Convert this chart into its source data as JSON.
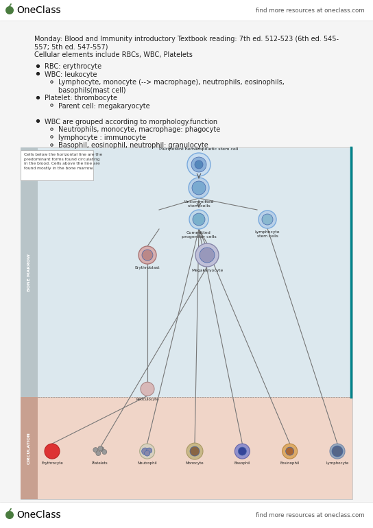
{
  "bg_color": "#f5f5f5",
  "header_bg": "#ffffff",
  "footer_bg": "#ffffff",
  "oneclass_green": "#4a7c3f",
  "header_text_right": "find more resources at oneclass.com",
  "footer_text_right": "find more resources at oneclass.com",
  "oneclass_logo_text": "OneClass",
  "title_line1": "Monday: Blood and Immunity introductory Textbook reading: 7th ed. 512-523 (6th ed. 545-",
  "title_line2": "557; 5th ed. 547-557)",
  "title_line3": "Cellular elements include RBCs, WBC, Platelets",
  "bullet1_l1": "RBC: erythrocyte",
  "bullet2_l1": "WBC: leukocyte",
  "bullet2_l2a": "Lymphocyte, monocyte (--> macrophage), neutrophils, eosinophils,",
  "bullet2_l2b": "basophils(mast cell)",
  "bullet3_l1": "Platelet: thrombocyte",
  "bullet3_l2": "Parent cell: megakaryocyte",
  "bullet4_l1": "WBC are grouped according to morphology.function",
  "bullet4_l2a": "Neutrophils, monocyte, macrophage: phagocyte",
  "bullet4_l2b": "lymphocyte : immunocyte",
  "bullet4_l2c": "Basophil, eosinophil, neutrophil: granulocyte",
  "diagram_bg": "#dce8ee",
  "diagram_bottom_bg": "#f0d5c8",
  "diagram_note_line1": "Cells below the horizontal line are the",
  "diagram_note_line2": "predominant forms found circulating",
  "diagram_note_line3": "in the blood. Cells above the line are",
  "diagram_note_line4": "found mostly in the bone marrow.",
  "bone_marrow_label": "BONE MARROW",
  "circulation_label": "CIRCULATION",
  "stem_cell_label": "Pluripotent hematopoietic stem cell",
  "uncommitted_label": "Uncommitted\nstem cells",
  "committed_label": "Committed\nprogenitor cells",
  "lymphocyte_stem_label": "Lymphocyte\nstem cells",
  "erythroblast_label": "Erythroblast",
  "megakaryocyte_label": "Megakaryocyte",
  "reticulocyte_label": "Reticulocyte",
  "bottom_labels": [
    "Erythrocyte",
    "Platelets",
    "Neutrophil",
    "Monocyte",
    "Basophil",
    "Eosinophil",
    "Lymphocyte"
  ],
  "teal_line_color": "#00838a"
}
